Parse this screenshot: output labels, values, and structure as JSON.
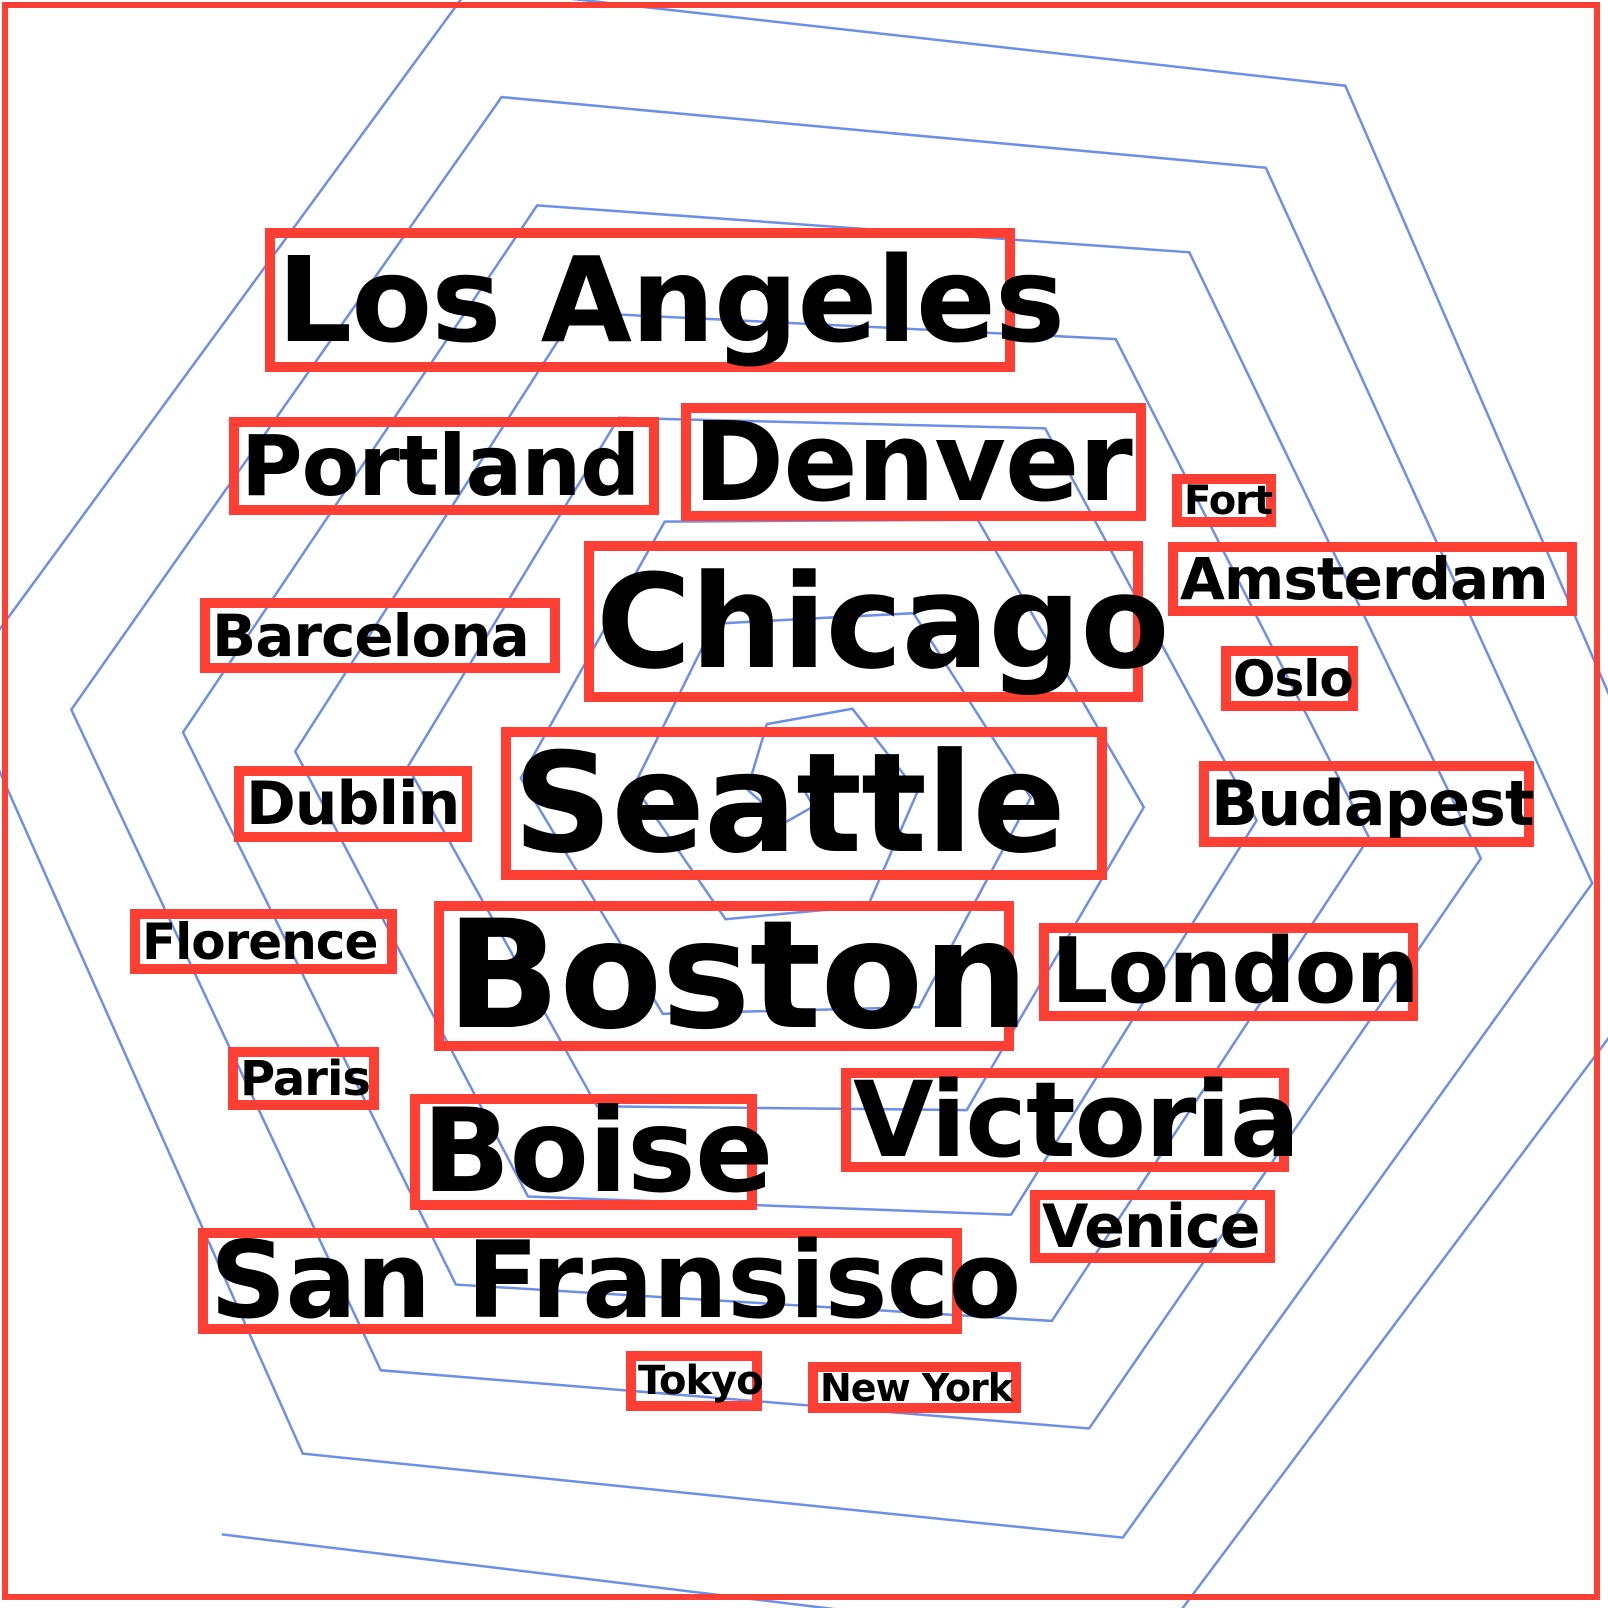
{
  "spiral_color": "#6d8fe6",
  "frame_color": "#ff3f34",
  "words": [
    {
      "id": "los-angeles",
      "text": "Los Angeles"
    },
    {
      "id": "portland",
      "text": "Portland"
    },
    {
      "id": "denver",
      "text": "Denver"
    },
    {
      "id": "fort",
      "text": "Fort"
    },
    {
      "id": "chicago",
      "text": "Chicago"
    },
    {
      "id": "amsterdam",
      "text": "Amsterdam"
    },
    {
      "id": "barcelona",
      "text": "Barcelona"
    },
    {
      "id": "oslo",
      "text": "Oslo"
    },
    {
      "id": "dublin",
      "text": "Dublin"
    },
    {
      "id": "seattle",
      "text": "Seattle"
    },
    {
      "id": "budapest",
      "text": "Budapest"
    },
    {
      "id": "florence",
      "text": "Florence"
    },
    {
      "id": "boston",
      "text": "Boston"
    },
    {
      "id": "london",
      "text": "London"
    },
    {
      "id": "paris",
      "text": "Paris"
    },
    {
      "id": "victoria",
      "text": "Victoria"
    },
    {
      "id": "boise",
      "text": "Boise"
    },
    {
      "id": "venice",
      "text": "Venice"
    },
    {
      "id": "san-fransisco",
      "text": "San Fransisco"
    },
    {
      "id": "tokyo",
      "text": "Tokyo"
    },
    {
      "id": "new-york",
      "text": "New York"
    }
  ]
}
